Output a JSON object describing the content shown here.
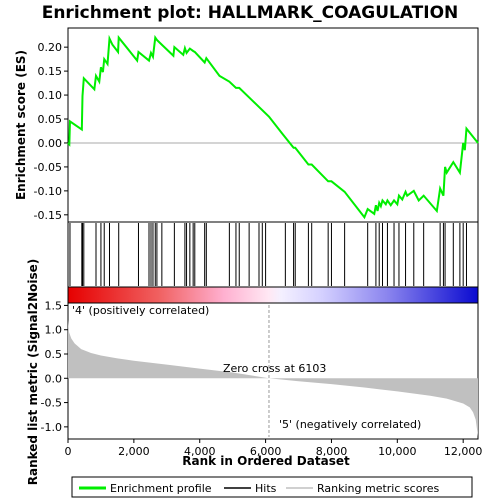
{
  "title": "Enrichment plot: HALLMARK_COAGULATION",
  "colors": {
    "enrichment_line": "#00ee00",
    "hits": "#000000",
    "metric_fill": "#c0c0c0",
    "pos_label": "#cc0000",
    "neg_label": "#0000cc",
    "zero_cross": "#999999"
  },
  "chart_data": [
    {
      "type": "line",
      "name": "enrichment-profile",
      "ylabel": "Enrichment score (ES)",
      "xlim": [
        0,
        12450
      ],
      "ylim": [
        -0.165,
        0.24
      ],
      "yticks": [
        0.2,
        0.15,
        0.1,
        0.05,
        0.0,
        -0.05,
        -0.1,
        -0.15
      ],
      "ytick_labels": [
        "0.20",
        "0.15",
        "0.10",
        "0.05",
        "0.00",
        "-0.05",
        "-0.10",
        "-0.15"
      ],
      "grid": false,
      "x": [
        0,
        40,
        60,
        420,
        440,
        480,
        800,
        850,
        950,
        1000,
        1060,
        1100,
        1200,
        1260,
        1350,
        1520,
        1540,
        2100,
        2140,
        2460,
        2520,
        2580,
        2650,
        2700,
        2850,
        3200,
        3230,
        3500,
        3550,
        3600,
        3700,
        3800,
        3850,
        4150,
        4200,
        4600,
        4900,
        5100,
        5200,
        5500,
        6103,
        6500,
        6850,
        6900,
        7300,
        7400,
        7900,
        8000,
        8400,
        9000,
        9100,
        9300,
        9350,
        9400,
        9450,
        9500,
        9550,
        9650,
        9700,
        9800,
        9900,
        10000,
        10050,
        10150,
        10250,
        10300,
        10500,
        10650,
        10800,
        11200,
        11300,
        11400,
        11450,
        11500,
        11700,
        11900,
        12000,
        12050,
        12100,
        12450
      ],
      "y": [
        0.0,
        -0.003,
        0.045,
        0.028,
        0.098,
        0.135,
        0.112,
        0.14,
        0.128,
        0.158,
        0.148,
        0.175,
        0.165,
        0.218,
        0.205,
        0.19,
        0.22,
        0.172,
        0.19,
        0.172,
        0.188,
        0.18,
        0.22,
        0.215,
        0.205,
        0.182,
        0.2,
        0.184,
        0.198,
        0.188,
        0.197,
        0.192,
        0.19,
        0.168,
        0.177,
        0.14,
        0.128,
        0.115,
        0.115,
        0.095,
        0.055,
        0.02,
        -0.01,
        -0.01,
        -0.045,
        -0.045,
        -0.08,
        -0.08,
        -0.102,
        -0.155,
        -0.138,
        -0.148,
        -0.13,
        -0.142,
        -0.125,
        -0.132,
        -0.12,
        -0.128,
        -0.12,
        -0.13,
        -0.12,
        -0.128,
        -0.11,
        -0.118,
        -0.102,
        -0.11,
        -0.1,
        -0.12,
        -0.11,
        -0.142,
        -0.095,
        -0.11,
        -0.05,
        -0.062,
        -0.04,
        -0.062,
        0.0,
        -0.015,
        0.03,
        0.0
      ]
    },
    {
      "type": "scatter",
      "name": "hits",
      "x": [
        60,
        420,
        440,
        480,
        850,
        1000,
        1100,
        1260,
        1540,
        2140,
        2460,
        2520,
        2580,
        2650,
        2700,
        2850,
        3230,
        3550,
        3600,
        3700,
        3800,
        3850,
        4150,
        4200,
        4900,
        5100,
        5200,
        5500,
        5800,
        5900,
        6000,
        6600,
        6850,
        6900,
        7300,
        7400,
        7900,
        8000,
        8400,
        9100,
        9350,
        9450,
        9550,
        9700,
        9900,
        10050,
        10250,
        10500,
        10800,
        11300,
        11400,
        11450,
        11700,
        11900,
        12000,
        12100
      ]
    },
    {
      "type": "area",
      "name": "ranked-list-metric",
      "xlabel": "Rank in Ordered Dataset",
      "ylabel": "Ranked list metric (Signal2Noise)",
      "xlim": [
        0,
        12450
      ],
      "ylim": [
        -1.25,
        1.55
      ],
      "xticks": [
        0,
        2000,
        4000,
        6000,
        8000,
        10000,
        12000
      ],
      "xtick_labels": [
        "0",
        "2,000",
        "4,000",
        "6,000",
        "8,000",
        "10,000",
        "12,000"
      ],
      "yticks": [
        1.5,
        1.0,
        0.5,
        0.0,
        -0.5,
        -1.0
      ],
      "ytick_labels": [
        "1.5",
        "1.0",
        "0.5",
        "0.0",
        "-0.5",
        "-1.0"
      ],
      "x": [
        0,
        30,
        100,
        200,
        400,
        700,
        1000,
        1500,
        2000,
        3000,
        4000,
        5000,
        6103,
        7000,
        8000,
        9000,
        10000,
        11000,
        11500,
        12000,
        12200,
        12300,
        12380,
        12420,
        12450
      ],
      "y": [
        1.2,
        0.95,
        0.82,
        0.72,
        0.6,
        0.52,
        0.47,
        0.41,
        0.36,
        0.28,
        0.2,
        0.12,
        0.0,
        -0.06,
        -0.12,
        -0.19,
        -0.27,
        -0.36,
        -0.42,
        -0.52,
        -0.6,
        -0.7,
        -0.85,
        -1.05,
        -1.2
      ]
    }
  ],
  "annotations": {
    "zero_cross": "Zero cross at 6103",
    "pos_label": "'4' (positively correlated)",
    "neg_label": "'5' (negatively correlated)"
  },
  "legend": {
    "placement": "bottom",
    "items": [
      {
        "label": "Enrichment profile",
        "color": "#00ee00"
      },
      {
        "label": "Hits",
        "color": "#000000"
      },
      {
        "label": "Ranking metric scores",
        "color": "#c0c0c0"
      }
    ]
  }
}
